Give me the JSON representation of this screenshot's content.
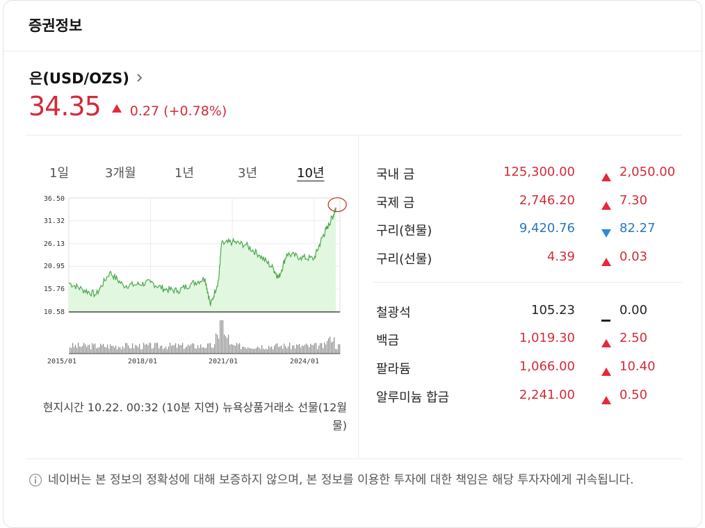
{
  "header": {
    "title": "증권정보"
  },
  "asset": {
    "name": "은(USD/OZS)",
    "price": "34.35",
    "change": "0.27",
    "change_pct": "(+0.78%)"
  },
  "tabs": [
    {
      "label": "1일",
      "active": false
    },
    {
      "label": "3개월",
      "active": false
    },
    {
      "label": "1년",
      "active": false
    },
    {
      "label": "3년",
      "active": false
    },
    {
      "label": "10년",
      "active": true
    }
  ],
  "chart_data": {
    "type": "line",
    "ytick_labels": [
      "36.50",
      "31.32",
      "26.13",
      "20.95",
      "15.76",
      "10.58"
    ],
    "ylim": [
      10.58,
      36.5
    ],
    "xtick_labels": [
      "2015/01",
      "2018/01",
      "2021/01",
      "2024/01"
    ],
    "xlim": [
      2015.0,
      2024.95
    ],
    "x": [
      2015.0,
      2015.5,
      2016.0,
      2016.5,
      2017.0,
      2017.5,
      2018.0,
      2018.5,
      2019.0,
      2019.5,
      2020.0,
      2020.2,
      2020.5,
      2020.6,
      2021.0,
      2021.5,
      2022.0,
      2022.5,
      2022.7,
      2023.0,
      2023.5,
      2024.0,
      2024.3,
      2024.5,
      2024.7,
      2024.8
    ],
    "y": [
      17.2,
      15.7,
      14.5,
      19.6,
      16.6,
      16.8,
      17.3,
      15.8,
      15.4,
      17.0,
      18.2,
      12.1,
      18.0,
      26.0,
      26.5,
      25.8,
      23.5,
      20.5,
      18.3,
      23.8,
      23.0,
      22.7,
      27.5,
      30.0,
      32.5,
      34.35
    ],
    "volume_panel": true,
    "series_color": "#4aa84b",
    "area_color": "#e2f7e0",
    "highlight_last_point": true
  },
  "footnote": "현지시간 10.22. 00:32 (10분 지연) 뉴욕상품거래소 선물(12월물)",
  "market_groups": [
    [
      {
        "name": "국내 금",
        "value": "125,300.00",
        "change": "2,050.00",
        "direction": "up"
      },
      {
        "name": "국제 금",
        "value": "2,746.20",
        "change": "7.30",
        "direction": "up"
      },
      {
        "name": "구리(현물)",
        "value": "9,420.76",
        "change": "82.27",
        "direction": "down"
      },
      {
        "name": "구리(선물)",
        "value": "4.39",
        "change": "0.03",
        "direction": "up"
      }
    ],
    [
      {
        "name": "철광석",
        "value": "105.23",
        "change": "0.00",
        "direction": "flat"
      },
      {
        "name": "백금",
        "value": "1,019.30",
        "change": "2.50",
        "direction": "up"
      },
      {
        "name": "팔라듐",
        "value": "1,066.00",
        "change": "10.40",
        "direction": "up"
      },
      {
        "name": "알루미늄 합금",
        "value": "2,241.00",
        "change": "0.50",
        "direction": "up"
      }
    ]
  ],
  "disclaimer": "네이버는 본 정보의 정확성에 대해 보증하지 않으며, 본 정보를 이용한 투자에 대한 책임은 해당 투자자에게 귀속됩니다."
}
